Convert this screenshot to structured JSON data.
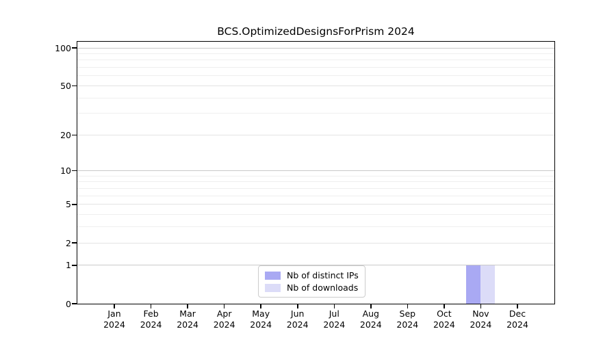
{
  "chart_data": {
    "type": "bar",
    "title": "BCS.OptimizedDesignsForPrism 2024",
    "categories": [
      "Jan",
      "Feb",
      "Mar",
      "Apr",
      "May",
      "Jun",
      "Jul",
      "Aug",
      "Sep",
      "Oct",
      "Nov",
      "Dec"
    ],
    "x_tick_year": "2024",
    "series": [
      {
        "name": "Nb of distinct IPs",
        "color": "#a9a9f3",
        "values": [
          0,
          0,
          0,
          0,
          0,
          0,
          0,
          0,
          0,
          0,
          1,
          0
        ]
      },
      {
        "name": "Nb of downloads",
        "color": "#dcdcf8",
        "values": [
          0,
          0,
          0,
          0,
          0,
          0,
          0,
          0,
          0,
          0,
          1,
          0
        ]
      }
    ],
    "scale": "log1p",
    "ylim": [
      0,
      114
    ],
    "y_major_ticks": [
      0,
      1,
      2,
      5,
      10,
      20,
      50,
      100
    ],
    "y_minor_ticks": [
      3,
      4,
      6,
      7,
      8,
      9,
      30,
      40,
      60,
      70,
      80,
      90
    ],
    "grid": "horizontal major + minor",
    "legend_position": "lower center",
    "xlabel": "",
    "ylabel": ""
  }
}
